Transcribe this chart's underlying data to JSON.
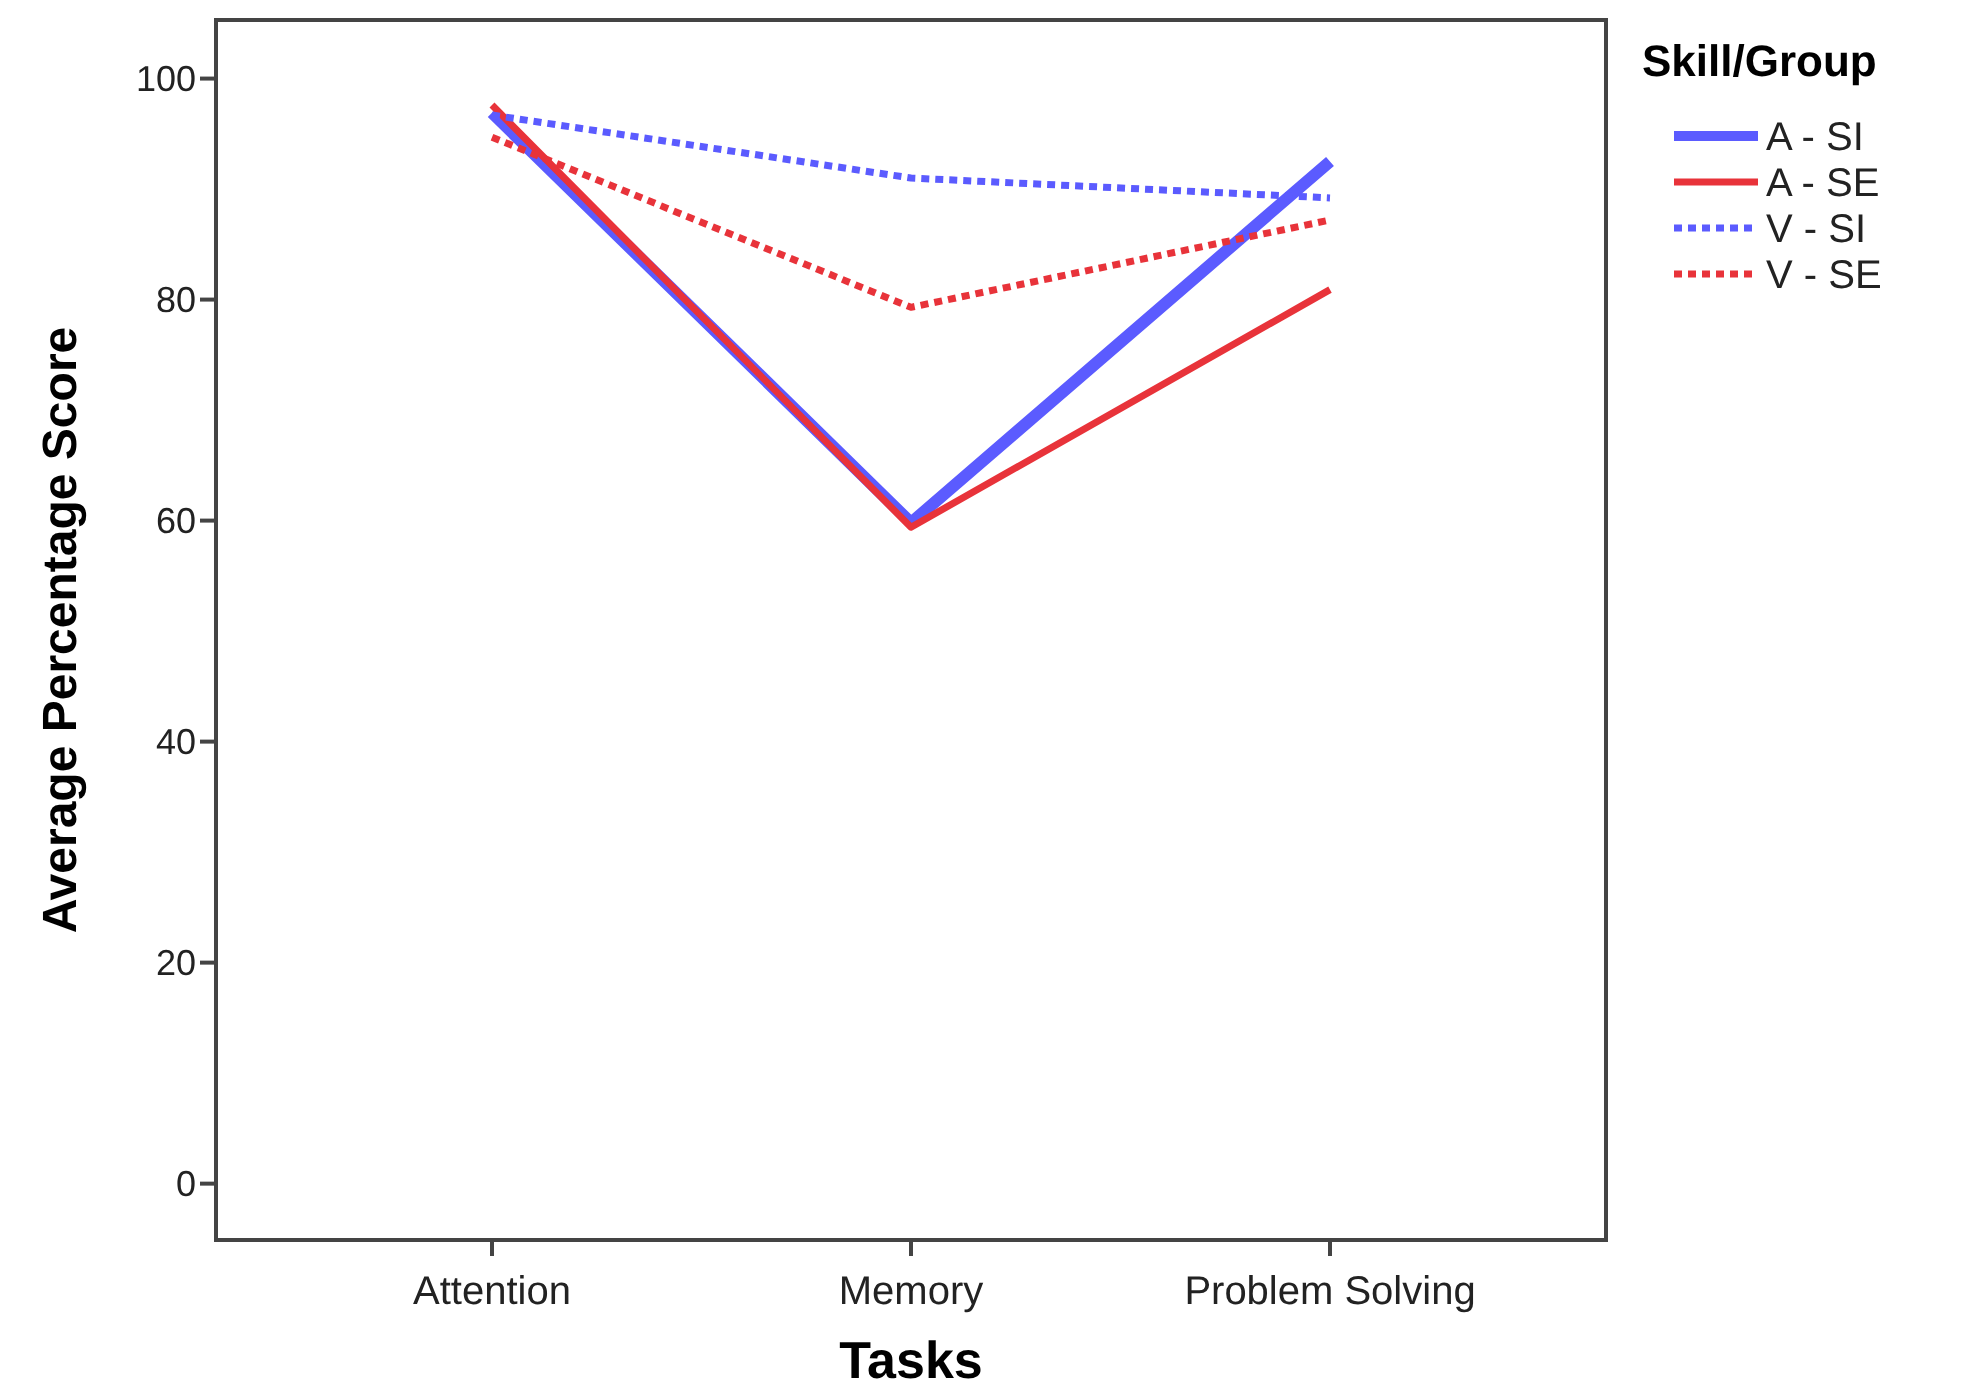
{
  "chart_data": {
    "type": "line",
    "xlabel": "Tasks",
    "ylabel": "Average Percentage Score",
    "legend_title": "Skill/Group",
    "legend": "top right",
    "grid": false,
    "categories": [
      "Attention",
      "Memory",
      "Problem Solving"
    ],
    "ylim": [
      -5.1,
      105.3
    ],
    "yticks": [
      0,
      20,
      40,
      60,
      80,
      100
    ],
    "series": [
      {
        "name": "A - SI",
        "color": "#5b5bff",
        "line_style": "solid",
        "values": [
          96.9,
          59.8,
          92.5
        ]
      },
      {
        "name": "A - SE",
        "color": "#e8333a",
        "line_style": "solid",
        "values": [
          97.6,
          59.4,
          80.9
        ]
      },
      {
        "name": "V - SI",
        "color": "#5b5bff",
        "line_style": "dotted",
        "values": [
          96.7,
          91.0,
          89.2
        ]
      },
      {
        "name": "V - SE",
        "color": "#e8333a",
        "line_style": "dotted",
        "values": [
          94.7,
          79.3,
          87.2
        ]
      }
    ]
  }
}
